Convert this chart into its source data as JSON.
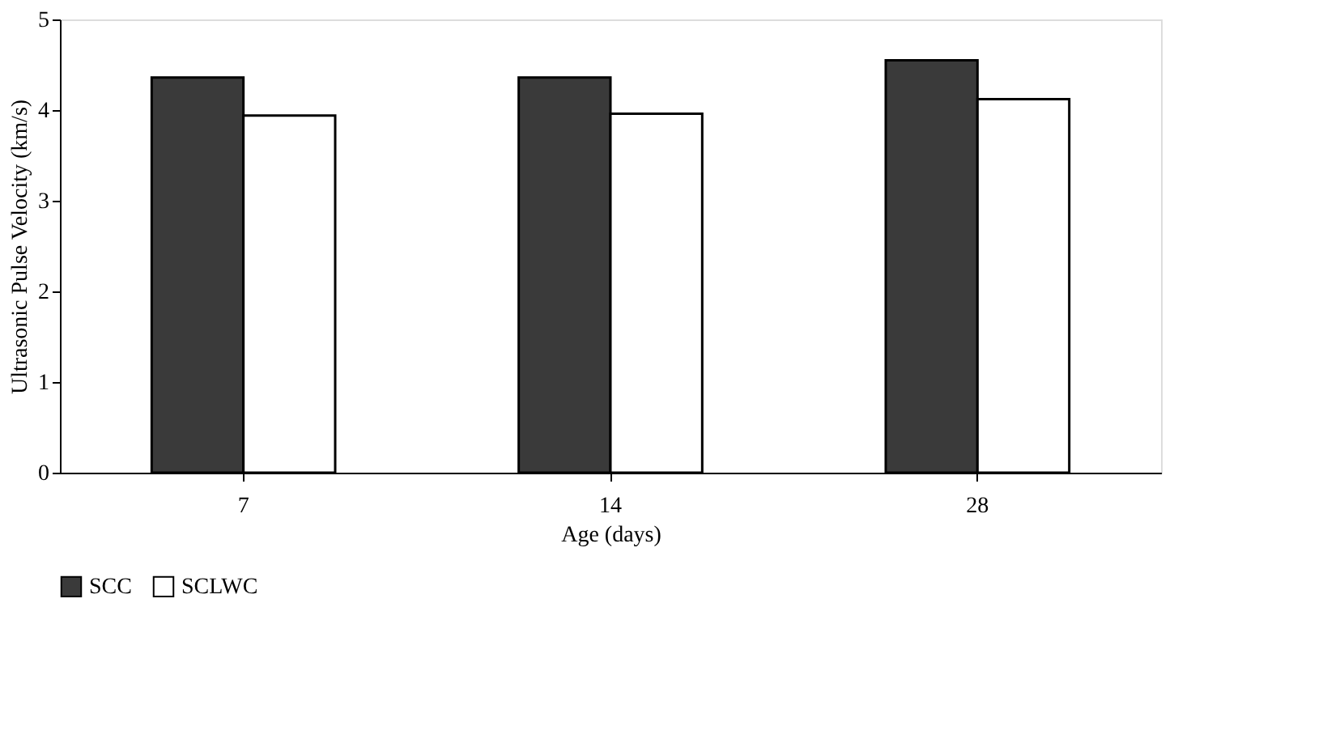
{
  "chart_data": {
    "type": "bar",
    "xlabel": "Age (days)",
    "ylabel": "Ultrasonic Pulse Velocity (km/s)",
    "categories": [
      "7",
      "14",
      "28"
    ],
    "series": [
      {
        "name": "SCC",
        "color": "#3a3a3a",
        "values": [
          4.36,
          4.36,
          4.55
        ]
      },
      {
        "name": "SCLWC",
        "color": "#ffffff",
        "values": [
          3.94,
          3.96,
          4.12
        ]
      }
    ],
    "ylim": [
      0,
      5
    ],
    "yticks": [
      0,
      1,
      2,
      3,
      4,
      5
    ],
    "grid": false,
    "legend": "bottom"
  }
}
